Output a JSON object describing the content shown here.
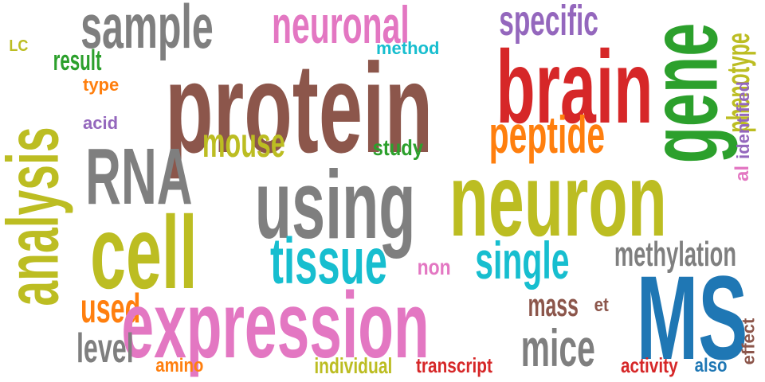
{
  "colors": {
    "gray": "#7f7f7f",
    "pink": "#e377c2",
    "purple": "#9467bd",
    "olive": "#bcbd22",
    "green": "#2ca02c",
    "teal": "#17becf",
    "orange": "#ff7f0e",
    "brown": "#8c564b",
    "red": "#d62728",
    "blue": "#1f77b4"
  },
  "words": {
    "sample": "sample",
    "neuronal": "neuronal",
    "specific": "specific",
    "lc": "LC",
    "result": "result",
    "method": "method",
    "protein": "protein",
    "brain": "brain",
    "gene": "gene",
    "phenotype": "phenotype",
    "identified": "identified",
    "type": "type",
    "analysis": "analysis",
    "acid": "acid",
    "peptide": "peptide",
    "mouse": "mouse",
    "study": "study",
    "rna": "RNA",
    "using": "using",
    "neuron": "neuron",
    "al": "al",
    "cell": "cell",
    "tissue": "tissue",
    "non": "non",
    "single": "single",
    "methylation": "methylation",
    "used": "used",
    "expression": "expression",
    "mass": "mass",
    "et": "et",
    "ms": "MS",
    "level": "level",
    "mice": "mice",
    "effect": "effect",
    "amino": "amino",
    "individual": "individual",
    "transcript": "transcript",
    "activity": "activity",
    "also": "also"
  }
}
